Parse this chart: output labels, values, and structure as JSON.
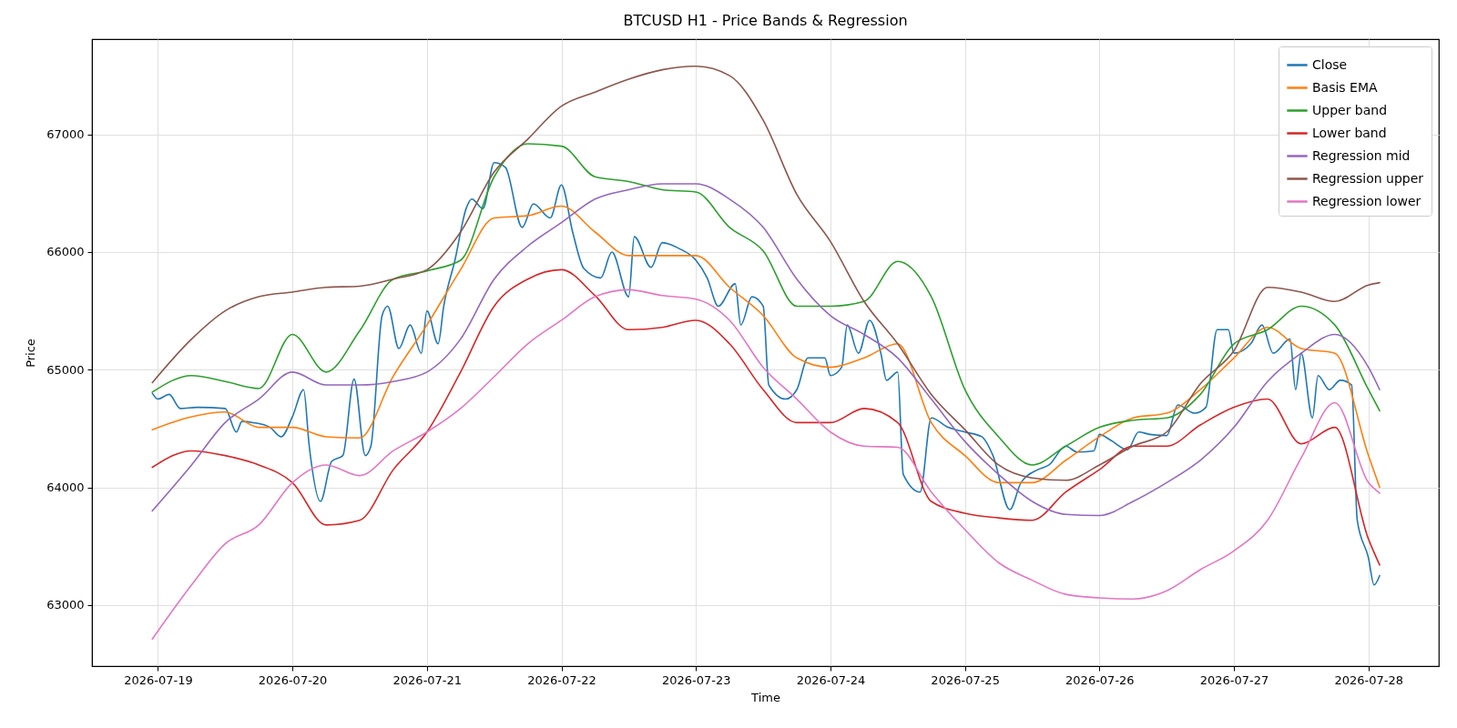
{
  "chart_data": {
    "type": "line",
    "title": "BTCUSD H1 - Price Bands & Regression",
    "xlabel": "Time",
    "ylabel": "Price",
    "x": [
      "2026-07-18T23:00",
      "2026-07-19T06:00",
      "2026-07-19T12:00",
      "2026-07-19T18:00",
      "2026-07-20T00:00",
      "2026-07-20T06:00",
      "2026-07-20T12:00",
      "2026-07-20T18:00",
      "2026-07-21T00:00",
      "2026-07-21T06:00",
      "2026-07-21T12:00",
      "2026-07-21T18:00",
      "2026-07-22T00:00",
      "2026-07-22T06:00",
      "2026-07-22T12:00",
      "2026-07-22T18:00",
      "2026-07-23T00:00",
      "2026-07-23T06:00",
      "2026-07-23T12:00",
      "2026-07-23T18:00",
      "2026-07-24T00:00",
      "2026-07-24T06:00",
      "2026-07-24T12:00",
      "2026-07-24T18:00",
      "2026-07-25T00:00",
      "2026-07-25T06:00",
      "2026-07-25T12:00",
      "2026-07-25T18:00",
      "2026-07-26T00:00",
      "2026-07-26T06:00",
      "2026-07-26T12:00",
      "2026-07-26T18:00",
      "2026-07-27T00:00",
      "2026-07-27T06:00",
      "2026-07-27T12:00",
      "2026-07-27T18:00",
      "2026-07-28T00:00",
      "2026-07-28T02:00"
    ],
    "xlim": [
      "2026-07-18T12:14",
      "2026-07-28T12:33"
    ],
    "xticks": [
      "2026-07-19",
      "2026-07-20",
      "2026-07-21",
      "2026-07-22",
      "2026-07-23",
      "2026-07-24",
      "2026-07-25",
      "2026-07-26",
      "2026-07-27",
      "2026-07-28"
    ],
    "ylim": [
      62480,
      67810
    ],
    "yticks": [
      63000,
      64000,
      65000,
      66000,
      67000
    ],
    "grid": true,
    "legend": "top right",
    "series": [
      {
        "name": "Close",
        "color": "#1f77b4",
        "x": [
          "2026-07-18T23:00",
          "2026-07-19T00:00",
          "2026-07-19T02:00",
          "2026-07-19T04:00",
          "2026-07-19T07:00",
          "2026-07-19T12:00",
          "2026-07-19T14:00",
          "2026-07-19T15:00",
          "2026-07-19T17:00",
          "2026-07-19T20:00",
          "2026-07-19T22:00",
          "2026-07-20T00:00",
          "2026-07-20T02:00",
          "2026-07-20T03:00",
          "2026-07-20T05:00",
          "2026-07-20T07:00",
          "2026-07-20T09:00",
          "2026-07-20T11:00",
          "2026-07-20T13:00",
          "2026-07-20T14:00",
          "2026-07-20T16:00",
          "2026-07-20T17:00",
          "2026-07-20T19:00",
          "2026-07-20T21:00",
          "2026-07-20T23:00",
          "2026-07-21T00:00",
          "2026-07-21T02:00",
          "2026-07-21T03:00",
          "2026-07-21T05:00",
          "2026-07-21T07:00",
          "2026-07-21T08:00",
          "2026-07-21T10:00",
          "2026-07-21T12:00",
          "2026-07-21T14:00",
          "2026-07-21T17:00",
          "2026-07-21T19:00",
          "2026-07-21T22:00",
          "2026-07-22T00:00",
          "2026-07-22T02:00",
          "2026-07-22T04:00",
          "2026-07-22T07:00",
          "2026-07-22T09:00",
          "2026-07-22T12:00",
          "2026-07-22T13:00",
          "2026-07-22T16:00",
          "2026-07-22T18:00",
          "2026-07-22T21:00",
          "2026-07-23T00:00",
          "2026-07-23T02:00",
          "2026-07-23T04:00",
          "2026-07-23T07:00",
          "2026-07-23T08:00",
          "2026-07-23T10:00",
          "2026-07-23T12:00",
          "2026-07-23T13:00",
          "2026-07-23T16:00",
          "2026-07-23T18:00",
          "2026-07-23T20:00",
          "2026-07-23T23:00",
          "2026-07-24T00:00",
          "2026-07-24T02:00",
          "2026-07-24T03:00",
          "2026-07-24T05:00",
          "2026-07-24T07:00",
          "2026-07-24T09:00",
          "2026-07-24T10:00",
          "2026-07-24T12:00",
          "2026-07-24T13:00",
          "2026-07-24T16:00",
          "2026-07-24T18:00",
          "2026-07-24T21:00",
          "2026-07-25T00:00",
          "2026-07-25T03:00",
          "2026-07-25T05:00",
          "2026-07-25T08:00",
          "2026-07-25T10:00",
          "2026-07-25T13:00",
          "2026-07-25T15:00",
          "2026-07-25T18:00",
          "2026-07-25T20:00",
          "2026-07-25T23:00",
          "2026-07-26T00:00",
          "2026-07-26T02:00",
          "2026-07-26T05:00",
          "2026-07-26T07:00",
          "2026-07-26T09:00",
          "2026-07-26T12:00",
          "2026-07-26T14:00",
          "2026-07-26T17:00",
          "2026-07-26T19:00",
          "2026-07-26T21:00",
          "2026-07-26T23:00",
          "2026-07-27T00:00",
          "2026-07-27T03:00",
          "2026-07-27T05:00",
          "2026-07-27T07:00",
          "2026-07-27T10:00",
          "2026-07-27T11:00",
          "2026-07-27T12:00",
          "2026-07-27T14:00",
          "2026-07-27T15:00",
          "2026-07-27T17:00",
          "2026-07-27T19:00",
          "2026-07-27T21:00",
          "2026-07-27T22:00",
          "2026-07-28T00:00",
          "2026-07-28T01:00",
          "2026-07-28T02:00"
        ],
        "values": [
          64800,
          64750,
          64790,
          64670,
          64680,
          64670,
          64470,
          64560,
          64550,
          64510,
          64430,
          64600,
          64830,
          64350,
          63880,
          64220,
          64270,
          64920,
          64270,
          64350,
          65460,
          65540,
          65180,
          65380,
          65140,
          65500,
          65220,
          65540,
          65930,
          66370,
          66450,
          66370,
          66760,
          66720,
          66210,
          66410,
          66290,
          66570,
          66170,
          65860,
          65780,
          66000,
          65620,
          66130,
          65870,
          66080,
          66030,
          65930,
          65780,
          65540,
          65730,
          65380,
          65620,
          65540,
          64870,
          64750,
          64830,
          65100,
          65100,
          64950,
          65020,
          65380,
          65140,
          65420,
          65140,
          64910,
          64980,
          64110,
          63960,
          64590,
          64510,
          64470,
          64430,
          64270,
          63810,
          64040,
          64150,
          64190,
          64350,
          64300,
          64310,
          64450,
          64400,
          64320,
          64470,
          64450,
          64440,
          64700,
          64630,
          64680,
          65340,
          65340,
          65140,
          65220,
          65380,
          65140,
          65260,
          64830,
          65140,
          64590,
          64950,
          64830,
          64910,
          64870,
          63720,
          63400,
          63170,
          63250
        ]
      },
      {
        "name": "Basis EMA",
        "color": "#ff7f0e",
        "values": [
          64490,
          64600,
          64640,
          64510,
          64510,
          64430,
          64420,
          64945,
          65380,
          65850,
          66290,
          66310,
          66390,
          66170,
          65970,
          65970,
          65970,
          65700,
          65460,
          65100,
          65020,
          65100,
          65220,
          64550,
          64270,
          64040,
          64040,
          64230,
          64430,
          64590,
          64630,
          64830,
          65100,
          65360,
          65180,
          65140,
          64270,
          64000
        ]
      },
      {
        "name": "Upper band",
        "color": "#2ca02c",
        "values": [
          64810,
          64950,
          64900,
          64840,
          65300,
          64980,
          65330,
          65770,
          65840,
          65930,
          66640,
          66920,
          66900,
          66640,
          66600,
          66530,
          66510,
          66210,
          66010,
          65540,
          65540,
          65580,
          65920,
          65620,
          64830,
          64430,
          64190,
          64350,
          64510,
          64570,
          64590,
          64790,
          65220,
          65340,
          65540,
          65380,
          64830,
          64650
        ]
      },
      {
        "name": "Lower band",
        "color": "#d62728",
        "values": [
          64170,
          64310,
          64270,
          64190,
          64040,
          63680,
          63720,
          64150,
          64470,
          64980,
          65540,
          65770,
          65850,
          65630,
          65340,
          65360,
          65420,
          65220,
          64830,
          64550,
          64550,
          64670,
          64550,
          63880,
          63780,
          63740,
          63720,
          63960,
          64150,
          64350,
          64350,
          64530,
          64680,
          64750,
          64370,
          64510,
          63560,
          63340
        ]
      },
      {
        "name": "Regression mid",
        "color": "#9467bd",
        "values": [
          63800,
          64190,
          64550,
          64750,
          64980,
          64870,
          64870,
          64900,
          64980,
          65260,
          65770,
          66050,
          66250,
          66450,
          66530,
          66580,
          66580,
          66450,
          66210,
          65770,
          65460,
          65300,
          65100,
          64750,
          64390,
          64110,
          63880,
          63770,
          63760,
          63880,
          64040,
          64230,
          64510,
          64900,
          65140,
          65300,
          65020,
          64830
        ]
      },
      {
        "name": "Regression upper",
        "color": "#8c564b",
        "values": [
          64890,
          65260,
          65500,
          65620,
          65660,
          65700,
          65710,
          65770,
          65850,
          66170,
          66680,
          66960,
          67240,
          67360,
          67470,
          67550,
          67580,
          67500,
          67120,
          66490,
          66090,
          65580,
          65220,
          64790,
          64490,
          64190,
          64080,
          64060,
          64190,
          64350,
          64470,
          64880,
          65160,
          65700,
          65660,
          65580,
          65720,
          65740
        ]
      },
      {
        "name": "Regression lower",
        "color": "#e377c2",
        "values": [
          62710,
          63170,
          63520,
          63680,
          64040,
          64190,
          64100,
          64310,
          64470,
          64670,
          64940,
          65220,
          65420,
          65620,
          65680,
          65630,
          65600,
          65420,
          65020,
          64750,
          64470,
          64350,
          64340,
          63960,
          63640,
          63360,
          63210,
          63090,
          63060,
          63050,
          63120,
          63300,
          63460,
          63720,
          64250,
          64720,
          64040,
          63950
        ]
      }
    ]
  }
}
